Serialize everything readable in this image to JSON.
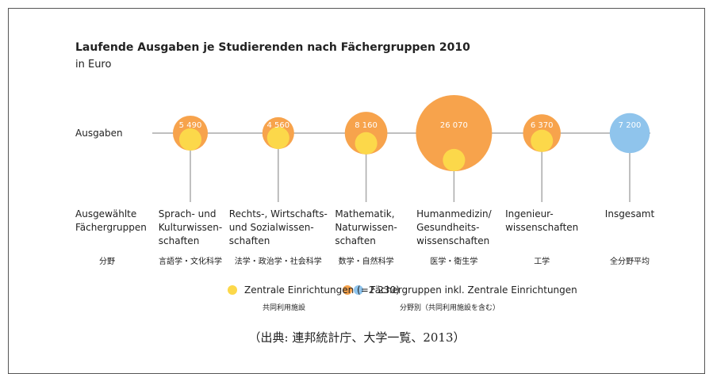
{
  "chart_data": {
    "type": "bubble",
    "title": "Laufende Ausgaben je Studierenden nach Fächergruppen 2010",
    "subtitle": "in Euro",
    "row_labels": [
      "Ausgaben",
      "Ausgewählte\nFächergruppen",
      "分野"
    ],
    "categories": [
      "Sprach- und\nKulturwissen-\nschaften",
      "Rechts-, Wirtschafts-\nund Sozialwissen-\nschaften",
      "Mathematik,\nNaturwissen-\nschaften",
      "Humanmedizin/\nGesundheits-\nwissenschaften",
      "Ingenieur-\nwissenschaften",
      "Insgesamt"
    ],
    "categories_ja": [
      "言語学・文化科学",
      "法学・政治学・社会科学",
      "数学・自然科学",
      "医学・衛生学",
      "工学",
      "全分野平均"
    ],
    "series": [
      {
        "name": "Fächergruppen inkl. Zentrale Einrichtungen",
        "name_ja": "分野別（共同利用施設を含む）",
        "colors": [
          "#f7a34c",
          "#f7a34c",
          "#f7a34c",
          "#f7a34c",
          "#f7a34c",
          "#8fc4ec"
        ],
        "values": [
          5490,
          4560,
          8160,
          26070,
          6370,
          7200
        ],
        "value_labels": [
          "5 490",
          "4 560",
          "8 160",
          "26 070",
          "6 370",
          "7 200"
        ]
      },
      {
        "name": "Zentrale Einrichtungen (=2 230)",
        "name_ja": "共同利用施設",
        "color": "#fcd84a",
        "values": [
          2230,
          2230,
          2230,
          2230,
          2230,
          null
        ]
      }
    ],
    "source": "（出典: 連邦統計庁、大学一覧、2013）"
  }
}
